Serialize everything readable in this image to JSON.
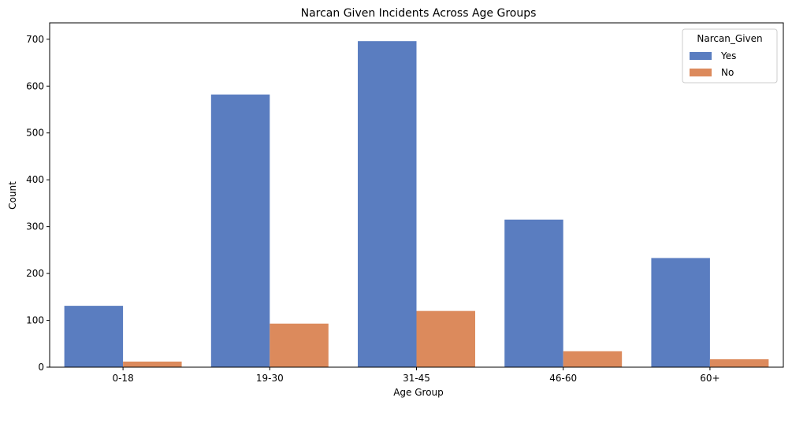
{
  "chart_data": {
    "type": "bar",
    "title": "Narcan Given Incidents Across Age Groups",
    "xlabel": "Age Group",
    "ylabel": "Count",
    "categories": [
      "0-18",
      "19-30",
      "31-45",
      "46-60",
      "60+"
    ],
    "ylim": [
      0,
      735
    ],
    "yticks": [
      0,
      100,
      200,
      300,
      400,
      500,
      600,
      700
    ],
    "legend_title": "Narcan_Given",
    "legend_position": "top-right",
    "grid": false,
    "series": [
      {
        "name": "Yes",
        "color": "#5a7dc0",
        "values": [
          131,
          582,
          696,
          315,
          233
        ]
      },
      {
        "name": "No",
        "color": "#dc8a5c",
        "values": [
          12,
          93,
          120,
          34,
          17
        ]
      }
    ]
  }
}
